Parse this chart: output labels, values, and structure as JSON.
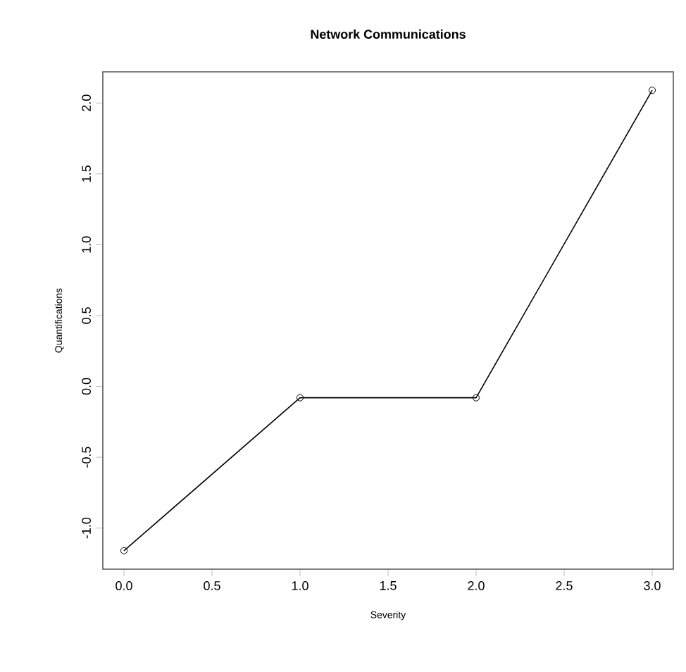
{
  "chart_data": {
    "type": "line",
    "title": "Network Communications",
    "xlabel": "Severity",
    "ylabel": "Quantifications",
    "x": [
      0,
      1,
      2,
      3
    ],
    "series": [
      {
        "color": "#000000",
        "values": [
          -1.16,
          -0.08,
          -0.08,
          2.09
        ]
      }
    ],
    "marker": "circle",
    "line_style": "solid",
    "grid": false,
    "xlim": [
      -0.12,
      3.12
    ],
    "ylim": [
      -1.29,
      2.22
    ],
    "xticks": [
      {
        "value": 0,
        "label": "0.0"
      },
      {
        "value": 0.5,
        "label": "0.5"
      },
      {
        "value": 1,
        "label": "1.0"
      },
      {
        "value": 1.5,
        "label": "1.5"
      },
      {
        "value": 2,
        "label": "2.0"
      },
      {
        "value": 2.5,
        "label": "2.5"
      },
      {
        "value": 3,
        "label": "3.0"
      }
    ],
    "yticks": [
      {
        "value": -1,
        "label": "-1.0"
      },
      {
        "value": -0.5,
        "label": "-0.5"
      },
      {
        "value": 0,
        "label": "0.0"
      },
      {
        "value": 0.5,
        "label": "0.5"
      },
      {
        "value": 1,
        "label": "1.0"
      },
      {
        "value": 1.5,
        "label": "1.5"
      },
      {
        "value": 2,
        "label": "2.0"
      }
    ]
  }
}
